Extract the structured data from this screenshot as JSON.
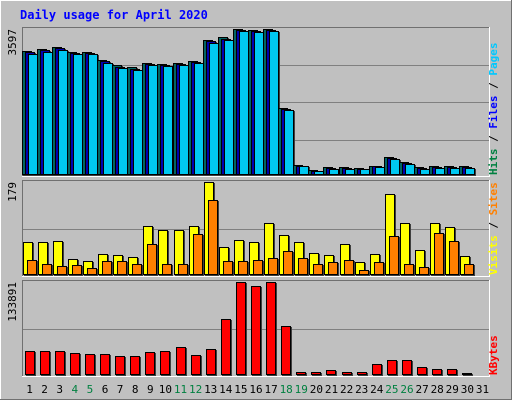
{
  "chart_data": [
    {
      "type": "bar",
      "title": "Daily usage for April 2020",
      "categories": [
        "1",
        "2",
        "3",
        "4",
        "5",
        "6",
        "7",
        "8",
        "9",
        "10",
        "11",
        "12",
        "13",
        "14",
        "15",
        "16",
        "17",
        "18",
        "19",
        "20",
        "21",
        "22",
        "23",
        "24",
        "25",
        "26",
        "27",
        "28",
        "29",
        "30",
        "31"
      ],
      "weekend_days": [
        "4",
        "5",
        "11",
        "12",
        "18",
        "19",
        "25",
        "26"
      ],
      "ymax_label": "3597",
      "ylim": [
        0,
        3597
      ],
      "axis_labels": [
        {
          "text": "Pages",
          "color": "#00c8ff"
        },
        {
          "text": "Files",
          "color": "#0000ff"
        },
        {
          "text": "Hits",
          "color": "#008040"
        }
      ],
      "series": [
        {
          "name": "Hits",
          "color": "#006464",
          "values": [
            3060,
            3100,
            3160,
            3030,
            3040,
            2830,
            2700,
            2650,
            2770,
            2740,
            2770,
            2810,
            3330,
            3390,
            3597,
            3580,
            3597,
            1650,
            250,
            130,
            200,
            200,
            180,
            230,
            440,
            310,
            200,
            220,
            210,
            210,
            0
          ]
        },
        {
          "name": "Files",
          "color": "#0000b0",
          "values": [
            3030,
            3070,
            3130,
            3000,
            3010,
            2800,
            2670,
            2620,
            2740,
            2710,
            2740,
            2780,
            3300,
            3360,
            3570,
            3550,
            3570,
            1630,
            230,
            110,
            180,
            180,
            160,
            210,
            420,
            290,
            180,
            200,
            190,
            190,
            0
          ]
        },
        {
          "name": "Pages",
          "color": "#00c8f0",
          "values": [
            2990,
            3030,
            3080,
            2970,
            2980,
            2770,
            2640,
            2590,
            2710,
            2680,
            2710,
            2760,
            3260,
            3330,
            3540,
            3520,
            3540,
            1600,
            210,
            90,
            160,
            160,
            140,
            190,
            400,
            270,
            160,
            180,
            170,
            170,
            0
          ]
        }
      ]
    },
    {
      "type": "bar",
      "ymax_label": "179",
      "ylim": [
        0,
        179
      ],
      "axis_labels": [
        {
          "text": "Sites",
          "color": "#ff8000"
        },
        {
          "text": "Visits",
          "color": "#ffff00"
        }
      ],
      "series": [
        {
          "name": "Visits",
          "color": "#ffff00",
          "values": [
            63,
            64,
            66,
            31,
            27,
            41,
            38,
            35,
            94,
            86,
            86,
            94,
            179,
            53,
            67,
            64,
            101,
            77,
            64,
            43,
            38,
            59,
            25,
            41,
            155,
            101,
            48,
            101,
            93,
            36,
            0
          ]
        },
        {
          "name": "Sites",
          "color": "#ff8000",
          "values": [
            29,
            22,
            18,
            20,
            14,
            26,
            26,
            21,
            59,
            22,
            22,
            78,
            144,
            27,
            27,
            29,
            32,
            47,
            32,
            22,
            25,
            28,
            9,
            25,
            76,
            22,
            16,
            80,
            65,
            21,
            0
          ]
        }
      ]
    },
    {
      "type": "bar",
      "ymax_label": "133891",
      "ylim": [
        0,
        133891
      ],
      "axis_labels": [
        {
          "text": "KBytes",
          "color": "#ff0000"
        }
      ],
      "series": [
        {
          "name": "KBytes",
          "color": "#ff0000",
          "values": [
            35000,
            35000,
            35000,
            31000,
            30000,
            30000,
            27000,
            27000,
            33000,
            35000,
            40000,
            29000,
            37000,
            80000,
            133891,
            128000,
            133891,
            70000,
            5000,
            4000,
            7000,
            5000,
            5000,
            16000,
            22000,
            22000,
            11000,
            9000,
            9000,
            3000,
            0
          ]
        }
      ]
    }
  ]
}
